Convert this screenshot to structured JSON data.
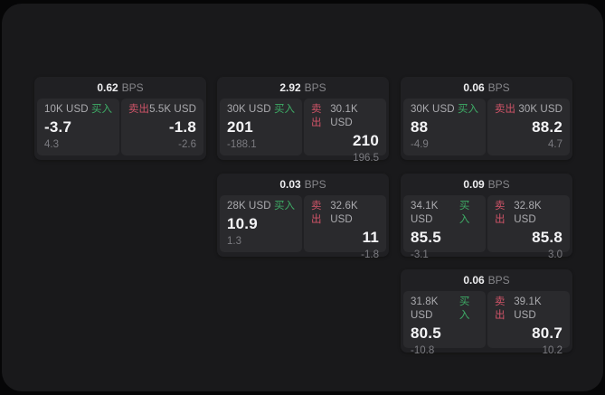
{
  "theme": {
    "outer_background": "#060607",
    "panel_background": "#19191b",
    "card_background": "#202023",
    "tile_background": "#2a2a2d",
    "buy_color": "#3eac66",
    "sell_color": "#d05468",
    "price_color": "#f4f4f6",
    "muted_text_color": "#7b7b80"
  },
  "labels": {
    "bps_unit": "BPS",
    "buy": "买入",
    "sell": "卖出"
  },
  "cards": [
    {
      "bps": "0.62",
      "buy": {
        "size": "10K USD",
        "price": "-3.7",
        "delta": "4.3"
      },
      "sell": {
        "size": "5.5K USD",
        "price": "-1.8",
        "delta": "-2.6"
      }
    },
    {
      "bps": "2.92",
      "buy": {
        "size": "30K USD",
        "price": "201",
        "delta": "-188.1"
      },
      "sell": {
        "size": "30.1K USD",
        "price": "210",
        "delta": "196.5"
      }
    },
    {
      "bps": "0.06",
      "buy": {
        "size": "30K USD",
        "price": "88",
        "delta": "-4.9"
      },
      "sell": {
        "size": "30K USD",
        "price": "88.2",
        "delta": "4.7"
      }
    },
    {
      "bps": "0.03",
      "buy": {
        "size": "28K USD",
        "price": "10.9",
        "delta": "1.3"
      },
      "sell": {
        "size": "32.6K USD",
        "price": "11",
        "delta": "-1.8"
      }
    },
    {
      "bps": "0.09",
      "buy": {
        "size": "34.1K USD",
        "price": "85.5",
        "delta": "-3.1"
      },
      "sell": {
        "size": "32.8K USD",
        "price": "85.8",
        "delta": "3.0"
      }
    },
    {
      "bps": "0.06",
      "buy": {
        "size": "31.8K USD",
        "price": "80.5",
        "delta": "-10.8"
      },
      "sell": {
        "size": "39.1K USD",
        "price": "80.7",
        "delta": "10.2"
      }
    }
  ]
}
